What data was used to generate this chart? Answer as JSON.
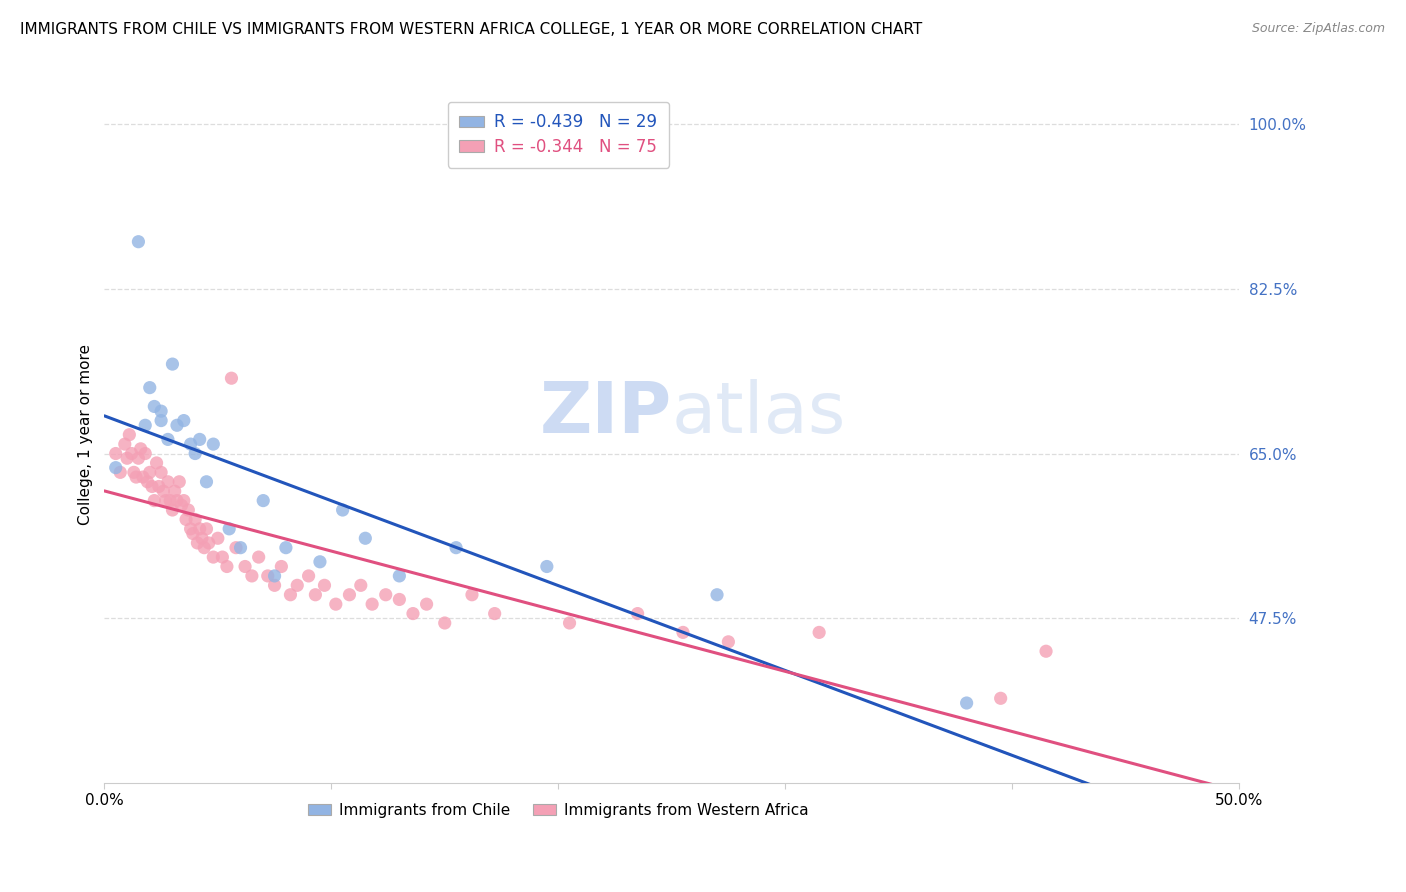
{
  "title": "IMMIGRANTS FROM CHILE VS IMMIGRANTS FROM WESTERN AFRICA COLLEGE, 1 YEAR OR MORE CORRELATION CHART",
  "source": "Source: ZipAtlas.com",
  "ylabel": "College, 1 year or more",
  "legend_label_1": "Immigrants from Chile",
  "legend_label_2": "Immigrants from Western Africa",
  "R1": -0.439,
  "N1": 29,
  "R2": -0.344,
  "N2": 75,
  "color_chile": "#92b4e3",
  "color_wa": "#f4a0b5",
  "line_color_chile": "#2255bb",
  "line_color_wa": "#e05080",
  "xlim": [
    0.0,
    0.5
  ],
  "ylim": [
    0.3,
    1.04
  ],
  "xticks": [
    0.0,
    0.1,
    0.2,
    0.3,
    0.4,
    0.5
  ],
  "xticklabels": [
    "0.0%",
    "",
    "",
    "",
    "",
    "50.0%"
  ],
  "yticks_right": [
    0.475,
    0.65,
    0.825,
    1.0
  ],
  "yticklabels_right": [
    "47.5%",
    "65.0%",
    "82.5%",
    "100.0%"
  ],
  "chile_x": [
    0.005,
    0.015,
    0.018,
    0.02,
    0.022,
    0.025,
    0.025,
    0.028,
    0.03,
    0.032,
    0.035,
    0.038,
    0.04,
    0.042,
    0.045,
    0.048,
    0.055,
    0.06,
    0.07,
    0.075,
    0.08,
    0.095,
    0.105,
    0.115,
    0.13,
    0.155,
    0.195,
    0.27,
    0.38
  ],
  "chile_y": [
    0.635,
    0.875,
    0.68,
    0.72,
    0.7,
    0.695,
    0.685,
    0.665,
    0.745,
    0.68,
    0.685,
    0.66,
    0.65,
    0.665,
    0.62,
    0.66,
    0.57,
    0.55,
    0.6,
    0.52,
    0.55,
    0.535,
    0.59,
    0.56,
    0.52,
    0.55,
    0.53,
    0.5,
    0.385
  ],
  "wa_x": [
    0.005,
    0.007,
    0.009,
    0.01,
    0.011,
    0.012,
    0.013,
    0.014,
    0.015,
    0.016,
    0.017,
    0.018,
    0.019,
    0.02,
    0.021,
    0.022,
    0.023,
    0.024,
    0.025,
    0.026,
    0.027,
    0.028,
    0.029,
    0.03,
    0.031,
    0.032,
    0.033,
    0.034,
    0.035,
    0.036,
    0.037,
    0.038,
    0.039,
    0.04,
    0.041,
    0.042,
    0.043,
    0.044,
    0.045,
    0.046,
    0.048,
    0.05,
    0.052,
    0.054,
    0.056,
    0.058,
    0.062,
    0.065,
    0.068,
    0.072,
    0.075,
    0.078,
    0.082,
    0.085,
    0.09,
    0.093,
    0.097,
    0.102,
    0.108,
    0.113,
    0.118,
    0.124,
    0.13,
    0.136,
    0.142,
    0.15,
    0.162,
    0.172,
    0.205,
    0.235,
    0.255,
    0.275,
    0.315,
    0.395,
    0.415
  ],
  "wa_y": [
    0.65,
    0.63,
    0.66,
    0.645,
    0.67,
    0.65,
    0.63,
    0.625,
    0.645,
    0.655,
    0.625,
    0.65,
    0.62,
    0.63,
    0.615,
    0.6,
    0.64,
    0.615,
    0.63,
    0.61,
    0.6,
    0.62,
    0.6,
    0.59,
    0.61,
    0.6,
    0.62,
    0.595,
    0.6,
    0.58,
    0.59,
    0.57,
    0.565,
    0.58,
    0.555,
    0.57,
    0.56,
    0.55,
    0.57,
    0.555,
    0.54,
    0.56,
    0.54,
    0.53,
    0.73,
    0.55,
    0.53,
    0.52,
    0.54,
    0.52,
    0.51,
    0.53,
    0.5,
    0.51,
    0.52,
    0.5,
    0.51,
    0.49,
    0.5,
    0.51,
    0.49,
    0.5,
    0.495,
    0.48,
    0.49,
    0.47,
    0.5,
    0.48,
    0.47,
    0.48,
    0.46,
    0.45,
    0.46,
    0.39,
    0.44
  ],
  "watermark_zip": "ZIP",
  "watermark_atlas": "atlas",
  "background_color": "#ffffff",
  "grid_color": "#dddddd"
}
